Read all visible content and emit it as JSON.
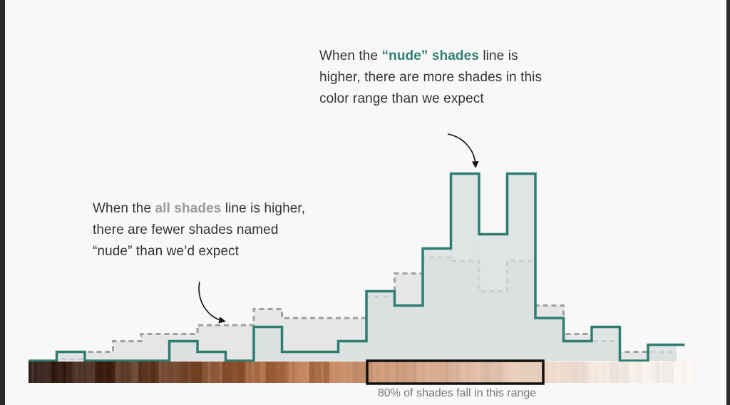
{
  "annotations": {
    "nude": {
      "prefix": "When the ",
      "highlight": "“nude” shades",
      "suffix": " line is higher, there are more shades in this color range than we expect"
    },
    "all": {
      "prefix": "When the ",
      "highlight": "all shades",
      "suffix": " line is higher, there are fewer shades named “nude” than we’d expect"
    }
  },
  "range_caption": "80% of shades fall in this range",
  "colors": {
    "nude_line": "#2e7e70",
    "nude_fill": "#d6dfdd",
    "all_line": "#a0a0a0",
    "all_fill": "#e6e6e6",
    "range_box": "#111111"
  },
  "chart_data": {
    "type": "area",
    "step": true,
    "bins": 23,
    "ylim": [
      0,
      10
    ],
    "series": [
      {
        "name": "“nude” shades",
        "style": "solid",
        "values": [
          0,
          0.5,
          0,
          0,
          0,
          1.1,
          0.5,
          0,
          1.9,
          0.5,
          0.5,
          1.1,
          3.9,
          3.1,
          6.3,
          10.5,
          7.1,
          10.5,
          2.4,
          1.1,
          1.9,
          0,
          0.9
        ]
      },
      {
        "name": "all shades",
        "style": "dashed",
        "values": [
          0,
          0.1,
          0.5,
          1.1,
          1.5,
          1.5,
          2.0,
          2.0,
          2.9,
          2.4,
          2.4,
          2.4,
          3.6,
          4.9,
          5.8,
          5.6,
          3.9,
          5.6,
          3.1,
          1.5,
          1.1,
          0.5,
          0.5
        ]
      }
    ],
    "highlight_range": {
      "start_bin": 12,
      "end_bin": 18
    }
  },
  "swatch_strip": {
    "stops": [
      "#3b2a24",
      "#5a3a2c",
      "#8a5a3e",
      "#b87a52",
      "#cc9672",
      "#ddb39a",
      "#ecd3c2",
      "#f5ebe4",
      "#fbf8f6"
    ]
  }
}
